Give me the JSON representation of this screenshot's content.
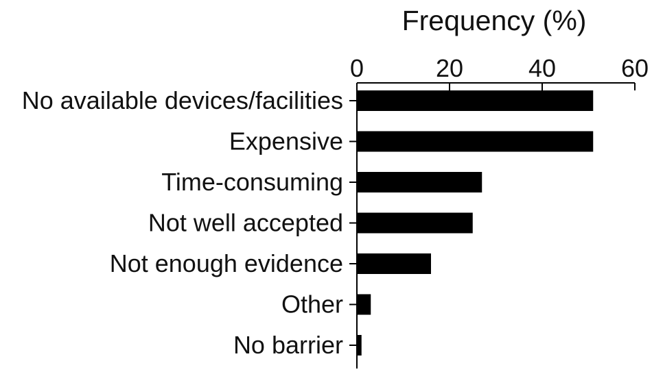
{
  "chart_data": {
    "type": "bar",
    "orientation": "horizontal",
    "title": "",
    "xlabel": "Frequency (%)",
    "ylabel": "",
    "xlim": [
      0,
      60
    ],
    "xticks": [
      "0",
      "20",
      "40",
      "60"
    ],
    "x_axis_position": "top",
    "grid": false,
    "legend": "none",
    "bar_color": "#000000",
    "categories": [
      "No available devices/facilities",
      "Expensive",
      "Time-consuming",
      "Not well accepted",
      "Not enough evidence",
      "Other",
      "No barrier"
    ],
    "values": [
      51,
      51,
      27,
      25,
      16,
      3,
      1
    ]
  }
}
